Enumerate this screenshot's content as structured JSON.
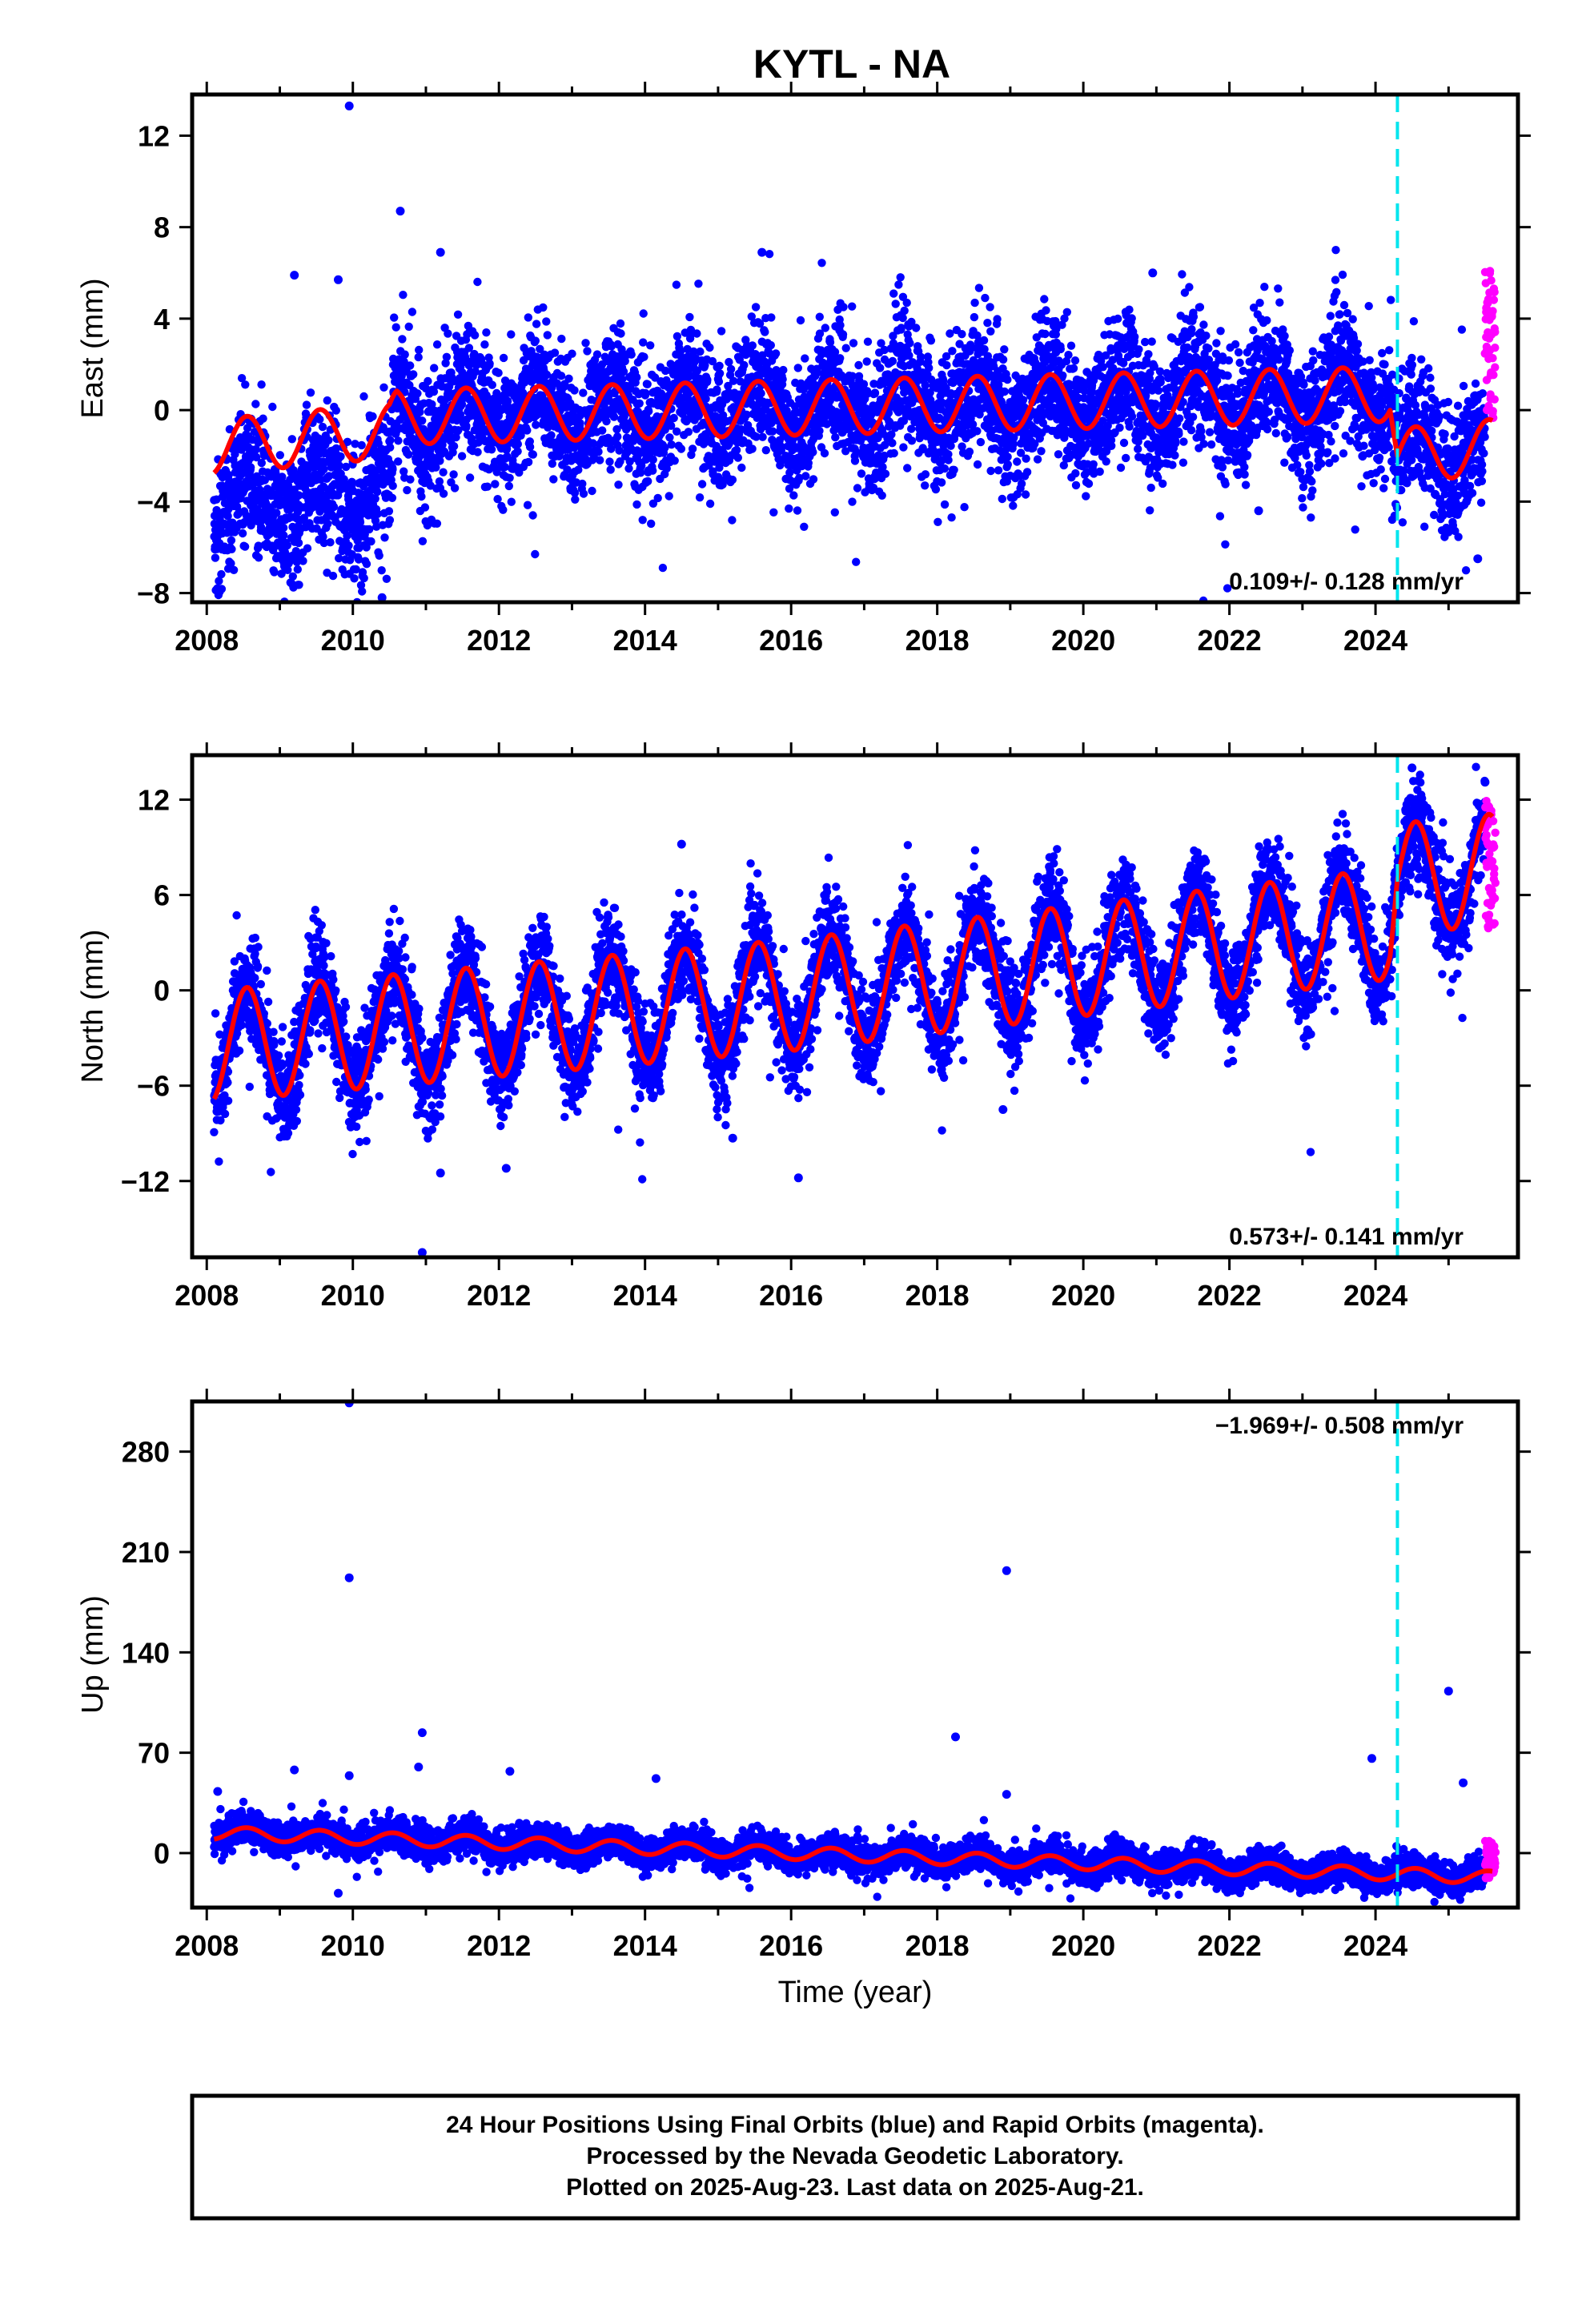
{
  "title": "KYTL - NA",
  "colors": {
    "final_orbits": "#0000ff",
    "rapid_orbits": "#ff00ff",
    "model_fit": "#ff0000",
    "event_marker": "#00e5ee"
  },
  "chart_data": [
    {
      "type": "scatter",
      "component": "East",
      "ylabel": "East (mm)",
      "xlabel": "",
      "xlim": [
        2007.8,
        2025.95
      ],
      "ylim": [
        -8.4,
        13.8
      ],
      "yticks": [
        -8,
        -4,
        0,
        4,
        8,
        12
      ],
      "xticks": [
        2008,
        2010,
        2012,
        2014,
        2016,
        2018,
        2020,
        2022,
        2024
      ],
      "rate": "0.109+/- 0.128 mm/yr",
      "rate_position": "bottom-right",
      "event_line_x": 2024.3,
      "noise_sd": 1.4,
      "seasonal_amplitude": 1.2,
      "fit_trend": [
        [
          2008.1,
          -1.6
        ],
        [
          2010.5,
          -0.9
        ],
        [
          2010.6,
          -0.3
        ],
        [
          2024.2,
          0.7
        ],
        [
          2024.3,
          -2.0
        ],
        [
          2025.6,
          -1.6
        ]
      ],
      "outliers": [
        [
          2009.95,
          13.3
        ],
        [
          2010.65,
          8.7
        ],
        [
          2011.2,
          6.9
        ],
        [
          2015.6,
          6.9
        ],
        [
          2020.95,
          6.0
        ],
        [
          2009.2,
          5.9
        ],
        [
          2009.8,
          5.7
        ],
        [
          2010.4,
          -8.2
        ],
        [
          2022.4,
          -4.4
        ],
        [
          2025.4,
          -6.5
        ]
      ],
      "rapid_orbits_range": [
        2025.5,
        2025.64
      ],
      "rapid_orbits_values": [
        -0.5,
        6.6
      ]
    },
    {
      "type": "scatter",
      "component": "North",
      "ylabel": "North (mm)",
      "xlabel": "",
      "xlim": [
        2007.8,
        2025.95
      ],
      "ylim": [
        -16.8,
        14.8
      ],
      "yticks": [
        -12,
        -6,
        0,
        6,
        12
      ],
      "xticks": [
        2008,
        2010,
        2012,
        2014,
        2016,
        2018,
        2020,
        2022,
        2024
      ],
      "rate": "0.573+/- 0.141 mm/yr",
      "rate_position": "bottom-right",
      "event_line_x": 2024.3,
      "noise_sd": 1.5,
      "seasonal_amplitude": 3.5,
      "fit_trend": [
        [
          2008.1,
          -3.5
        ],
        [
          2016.0,
          -0.3
        ],
        [
          2024.2,
          4.2
        ],
        [
          2024.3,
          7.0
        ],
        [
          2025.6,
          7.6
        ]
      ],
      "outliers": [
        [
          2010.95,
          -16.5
        ],
        [
          2011.2,
          -11.5
        ],
        [
          2012.1,
          -11.2
        ],
        [
          2016.1,
          -11.8
        ],
        [
          2015.2,
          -9.3
        ],
        [
          2018.9,
          -7.5
        ],
        [
          2014.5,
          9.2
        ],
        [
          2024.5,
          14.0
        ],
        [
          2025.5,
          13.1
        ]
      ],
      "rapid_orbits_range": [
        2025.5,
        2025.64
      ],
      "rapid_orbits_values": [
        3.8,
        12.0
      ]
    },
    {
      "type": "scatter",
      "component": "Up",
      "ylabel": "Up (mm)",
      "xlabel": "Time (year)",
      "xlim": [
        2007.8,
        2025.95
      ],
      "ylim": [
        -38,
        315
      ],
      "yticks": [
        0,
        70,
        140,
        210,
        280
      ],
      "xticks": [
        2008,
        2010,
        2012,
        2014,
        2016,
        2018,
        2020,
        2022,
        2024
      ],
      "rate": "-1.969+/- 0.508 mm/yr",
      "rate_position": "top-right",
      "event_line_x": 2024.3,
      "noise_sd": 5.5,
      "seasonal_amplitude": 4.5,
      "fit_trend": [
        [
          2008.1,
          14
        ],
        [
          2025.6,
          -17
        ]
      ],
      "outliers": [
        [
          2009.95,
          314
        ],
        [
          2009.95,
          192
        ],
        [
          2018.95,
          197
        ],
        [
          2025.0,
          113
        ],
        [
          2010.95,
          84
        ],
        [
          2018.25,
          81
        ],
        [
          2023.95,
          66
        ],
        [
          2009.2,
          58
        ],
        [
          2012.15,
          57
        ],
        [
          2009.95,
          54
        ],
        [
          2014.15,
          52
        ],
        [
          2025.2,
          49
        ],
        [
          2010.9,
          60
        ],
        [
          2018.95,
          41
        ],
        [
          2008.15,
          43
        ],
        [
          2009.8,
          -28
        ]
      ],
      "rapid_orbits_range": [
        2025.5,
        2025.64
      ],
      "rapid_orbits_values": [
        -18,
        10
      ]
    }
  ],
  "footer": {
    "line1": "24 Hour Positions Using Final Orbits (blue) and Rapid Orbits (magenta).",
    "line2": "Processed by the Nevada Geodetic Laboratory.",
    "line3": "Plotted on 2025-Aug-23. Last data on 2025-Aug-21."
  }
}
